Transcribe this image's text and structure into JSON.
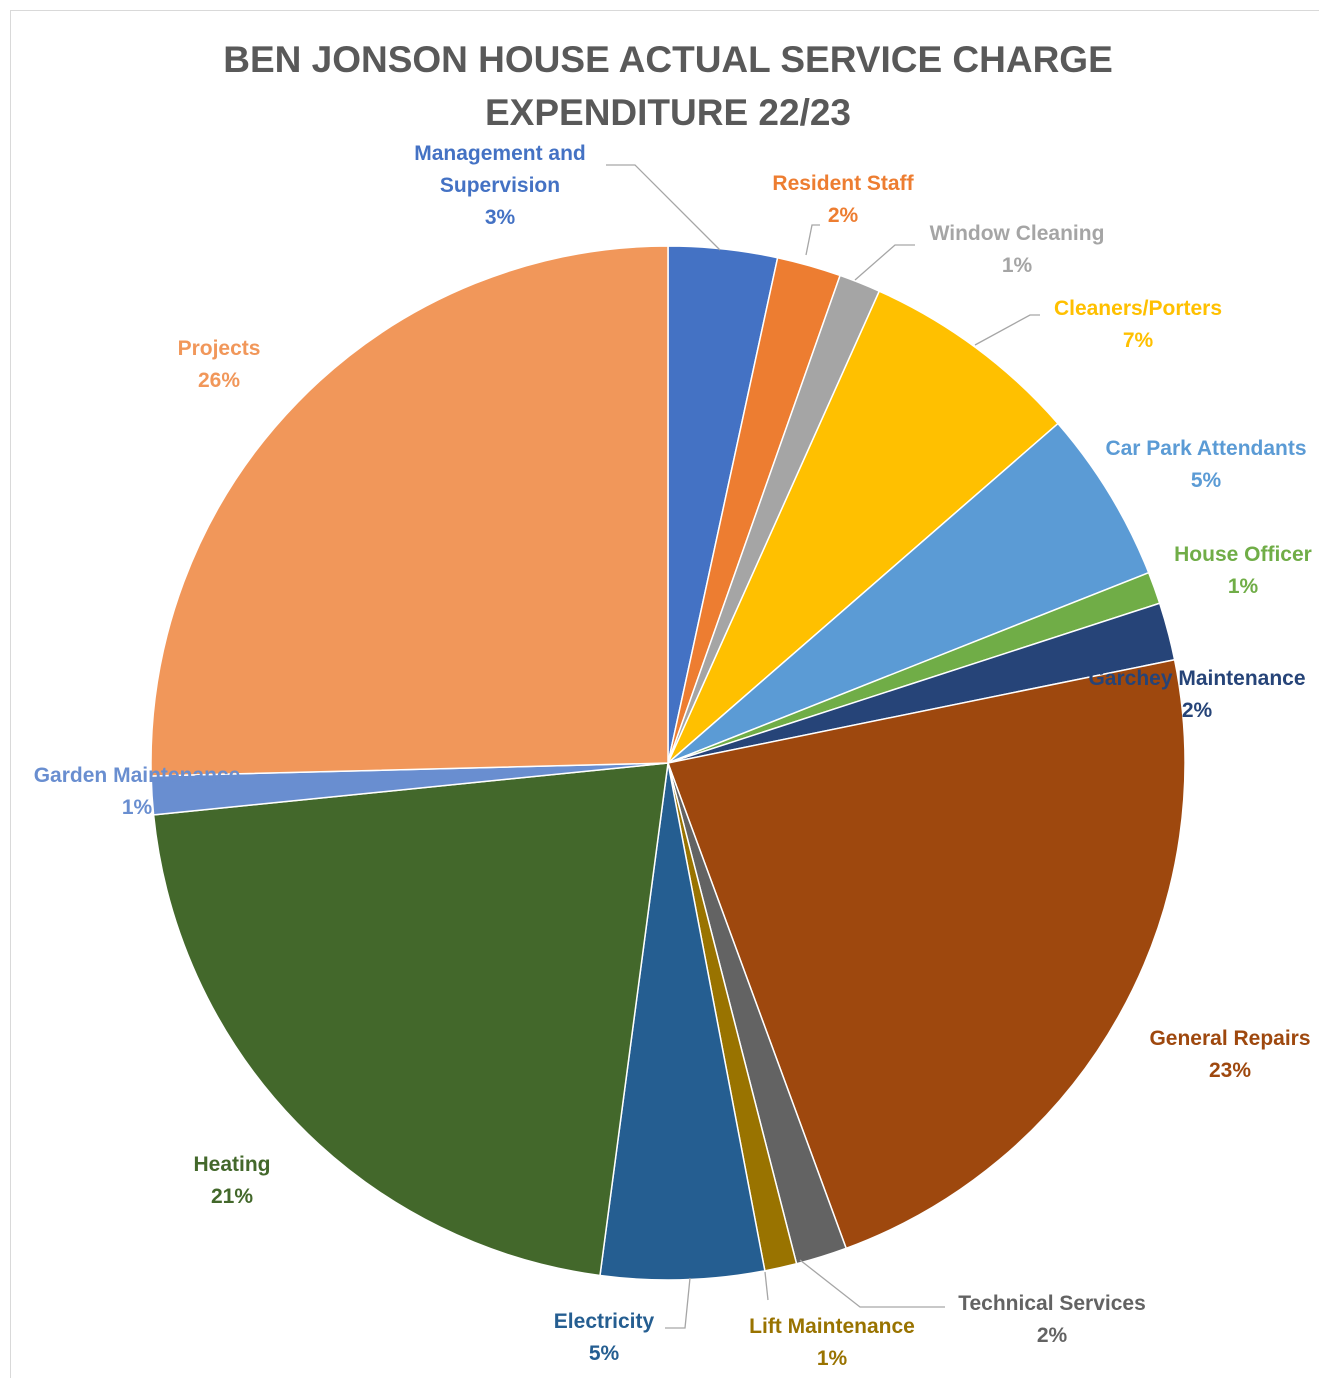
{
  "chart_data": {
    "type": "pie",
    "title_lines": [
      "BEN JONSON HOUSE ACTUAL SERVICE CHARGE",
      "EXPENDITURE 22/23"
    ],
    "start_angle_deg": 0,
    "direction": "clockwise",
    "slices": [
      {
        "label_lines": [
          "Management and",
          "Supervision"
        ],
        "pct_label": "3%",
        "value": 3.4,
        "color": "#4472c4"
      },
      {
        "label_lines": [
          "Resident Staff"
        ],
        "pct_label": "2%",
        "value": 2.0,
        "color": "#ed7d31"
      },
      {
        "label_lines": [
          "Window Cleaning"
        ],
        "pct_label": "1%",
        "value": 1.3,
        "color": "#a5a5a5"
      },
      {
        "label_lines": [
          "Cleaners/Porters"
        ],
        "pct_label": "7%",
        "value": 6.9,
        "color": "#ffc000"
      },
      {
        "label_lines": [
          "Car Park Attendants"
        ],
        "pct_label": "5%",
        "value": 5.4,
        "color": "#5b9bd5"
      },
      {
        "label_lines": [
          "House Officer"
        ],
        "pct_label": "1%",
        "value": 1.0,
        "color": "#70ad47"
      },
      {
        "label_lines": [
          "Garchey Maintenance"
        ],
        "pct_label": "2%",
        "value": 1.8,
        "color": "#264478"
      },
      {
        "label_lines": [
          "General Repairs"
        ],
        "pct_label": "23%",
        "value": 22.6,
        "color": "#9e480e"
      },
      {
        "label_lines": [
          "Technical Services"
        ],
        "pct_label": "2%",
        "value": 1.6,
        "color": "#636363"
      },
      {
        "label_lines": [
          "Lift Maintenance"
        ],
        "pct_label": "1%",
        "value": 1.0,
        "color": "#997300"
      },
      {
        "label_lines": [
          "Electricity"
        ],
        "pct_label": "5%",
        "value": 5.1,
        "color": "#255e91"
      },
      {
        "label_lines": [
          "Heating"
        ],
        "pct_label": "21%",
        "value": 21.3,
        "color": "#43682b"
      },
      {
        "label_lines": [
          "Garden Maintenance"
        ],
        "pct_label": "1%",
        "value": 1.2,
        "color": "#698ed0"
      },
      {
        "label_lines": [
          "Projects"
        ],
        "pct_label": "26%",
        "value": 25.4,
        "color": "#f1975a"
      }
    ]
  }
}
